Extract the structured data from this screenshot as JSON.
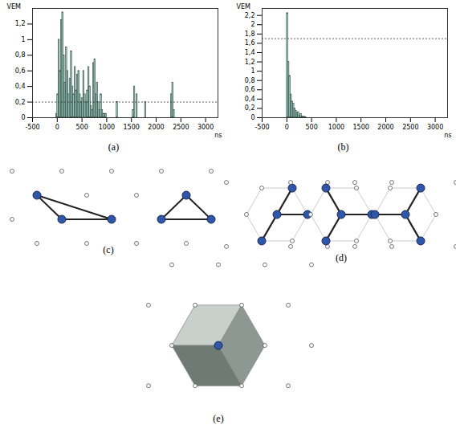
{
  "chart_data": [
    {
      "type": "histogram",
      "title": "(a)",
      "x_label": "ns",
      "y_label": "VEM",
      "color": "#9fd8c8",
      "bins": [
        -25,
        0,
        25,
        50,
        75,
        100,
        125,
        150,
        175,
        200,
        225,
        250,
        275,
        300,
        325,
        350,
        375,
        400,
        425,
        450,
        475,
        500,
        525,
        550,
        575,
        600,
        625,
        650,
        675,
        700,
        725,
        750,
        775,
        800,
        825,
        850,
        875,
        900,
        925,
        950,
        975,
        1000,
        1200,
        1225,
        1525,
        1550,
        1575,
        1600,
        1625,
        1775,
        1800,
        2300,
        2325,
        2350,
        2375
      ],
      "values": [
        0.05,
        0.3,
        1.0,
        0.6,
        1.25,
        1.35,
        0.8,
        0.45,
        0.9,
        0.6,
        0.3,
        0.5,
        0.85,
        0.4,
        0.3,
        0.65,
        0.35,
        0.55,
        0.6,
        0.3,
        0.2,
        0.25,
        0.6,
        0.3,
        0.2,
        0.35,
        0.65,
        0.4,
        0.15,
        0.1,
        0.7,
        0.75,
        0.3,
        0.45,
        0.2,
        0.1,
        0.3,
        0.1,
        0.05,
        0.05,
        0.05,
        0,
        0.2,
        0,
        0.1,
        0.4,
        0,
        0.3,
        0,
        0.2,
        0,
        0.3,
        0.45,
        0.1
      ],
      "threshold": 0.2,
      "xlim": [
        -500,
        3250
      ],
      "xticks": [
        -500,
        0,
        500,
        1000,
        1500,
        2000,
        2500,
        3000
      ],
      "ylim": [
        0,
        1.4
      ],
      "yticks": [
        0,
        {
          "value": 0.2,
          "label": "0,2"
        },
        {
          "value": 0.4,
          "label": "0,4"
        },
        {
          "value": 0.6,
          "label": "0,6"
        },
        {
          "value": 0.8,
          "label": "0,8"
        },
        1,
        {
          "value": 1.2,
          "label": "1,2"
        }
      ]
    },
    {
      "type": "histogram",
      "title": "(b)",
      "x_label": "ns",
      "y_label": "VEM",
      "color": "#9fd8c8",
      "bins": [
        -25,
        0,
        25,
        50,
        75,
        100,
        125,
        150,
        175,
        200,
        225,
        250,
        275,
        300,
        325,
        350,
        375,
        400
      ],
      "values": [
        0,
        2.25,
        1.2,
        0.9,
        0.5,
        0.35,
        0.3,
        0.2,
        0.15,
        0.1,
        0.12,
        0.05,
        0.08,
        0.03,
        0.02,
        0.02,
        0.01
      ],
      "threshold": 1.7,
      "xlim": [
        -500,
        3250
      ],
      "xticks": [
        -500,
        0,
        500,
        1000,
        1500,
        2000,
        2500,
        3000
      ],
      "ylim": [
        0,
        2.35
      ],
      "yticks": [
        0,
        {
          "value": 0.2,
          "label": "0,2"
        },
        {
          "value": 0.4,
          "label": "0,4"
        },
        {
          "value": 0.6,
          "label": "0,6"
        },
        {
          "value": 0.8,
          "label": "0,8"
        },
        1,
        {
          "value": 1.2,
          "label": "1,2"
        },
        {
          "value": 1.4,
          "label": "1,4"
        },
        {
          "value": 1.6,
          "label": "1,6"
        },
        {
          "value": 1.8,
          "label": "1,8"
        },
        2,
        {
          "value": 2.2,
          "label": "2,2"
        }
      ]
    }
  ],
  "diagrams": [
    {
      "label": "(c)"
    },
    {
      "label": "(d)"
    },
    {
      "label": "(e)"
    }
  ]
}
